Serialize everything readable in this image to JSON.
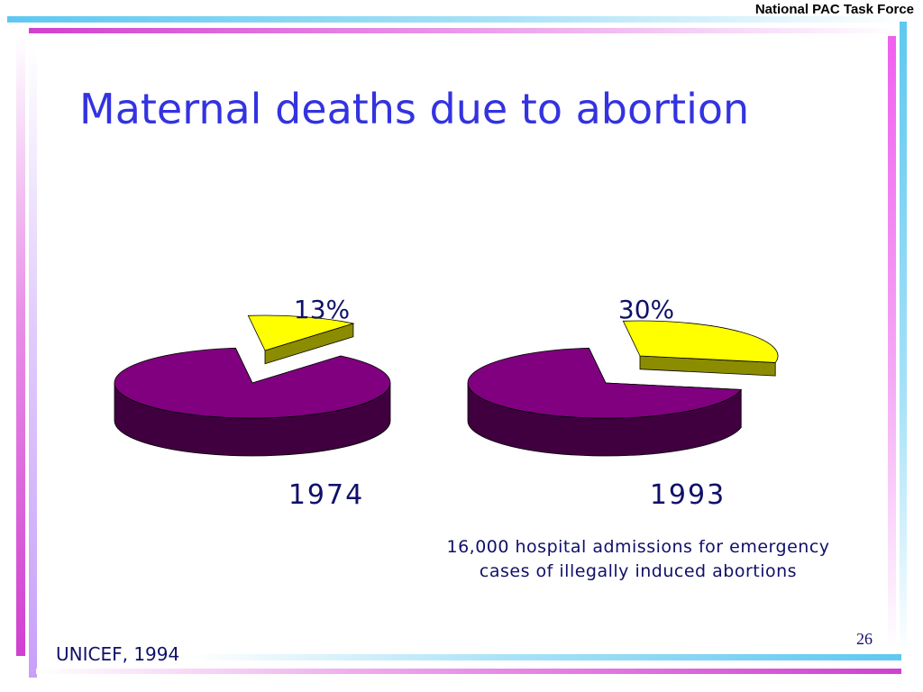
{
  "header": {
    "org": "National PAC Task Force"
  },
  "slide": {
    "title": "Maternal deaths due to abortion",
    "note": "16,000 hospital admissions for emergency cases of illegally induced abortions",
    "source": "UNICEF, 1994",
    "page_number": "26"
  },
  "colors": {
    "highlight_slice": "#ffff00",
    "other_slice": "#800080",
    "title": "#3333e0",
    "text": "#10106a"
  },
  "chart_data": {
    "type": "pie",
    "charts": [
      {
        "label": "1974",
        "value_percent": 13,
        "value_label": "13%",
        "remainder_percent": 87
      },
      {
        "label": "1993",
        "value_percent": 30,
        "value_label": "30%",
        "remainder_percent": 70
      }
    ],
    "legend": "none"
  }
}
